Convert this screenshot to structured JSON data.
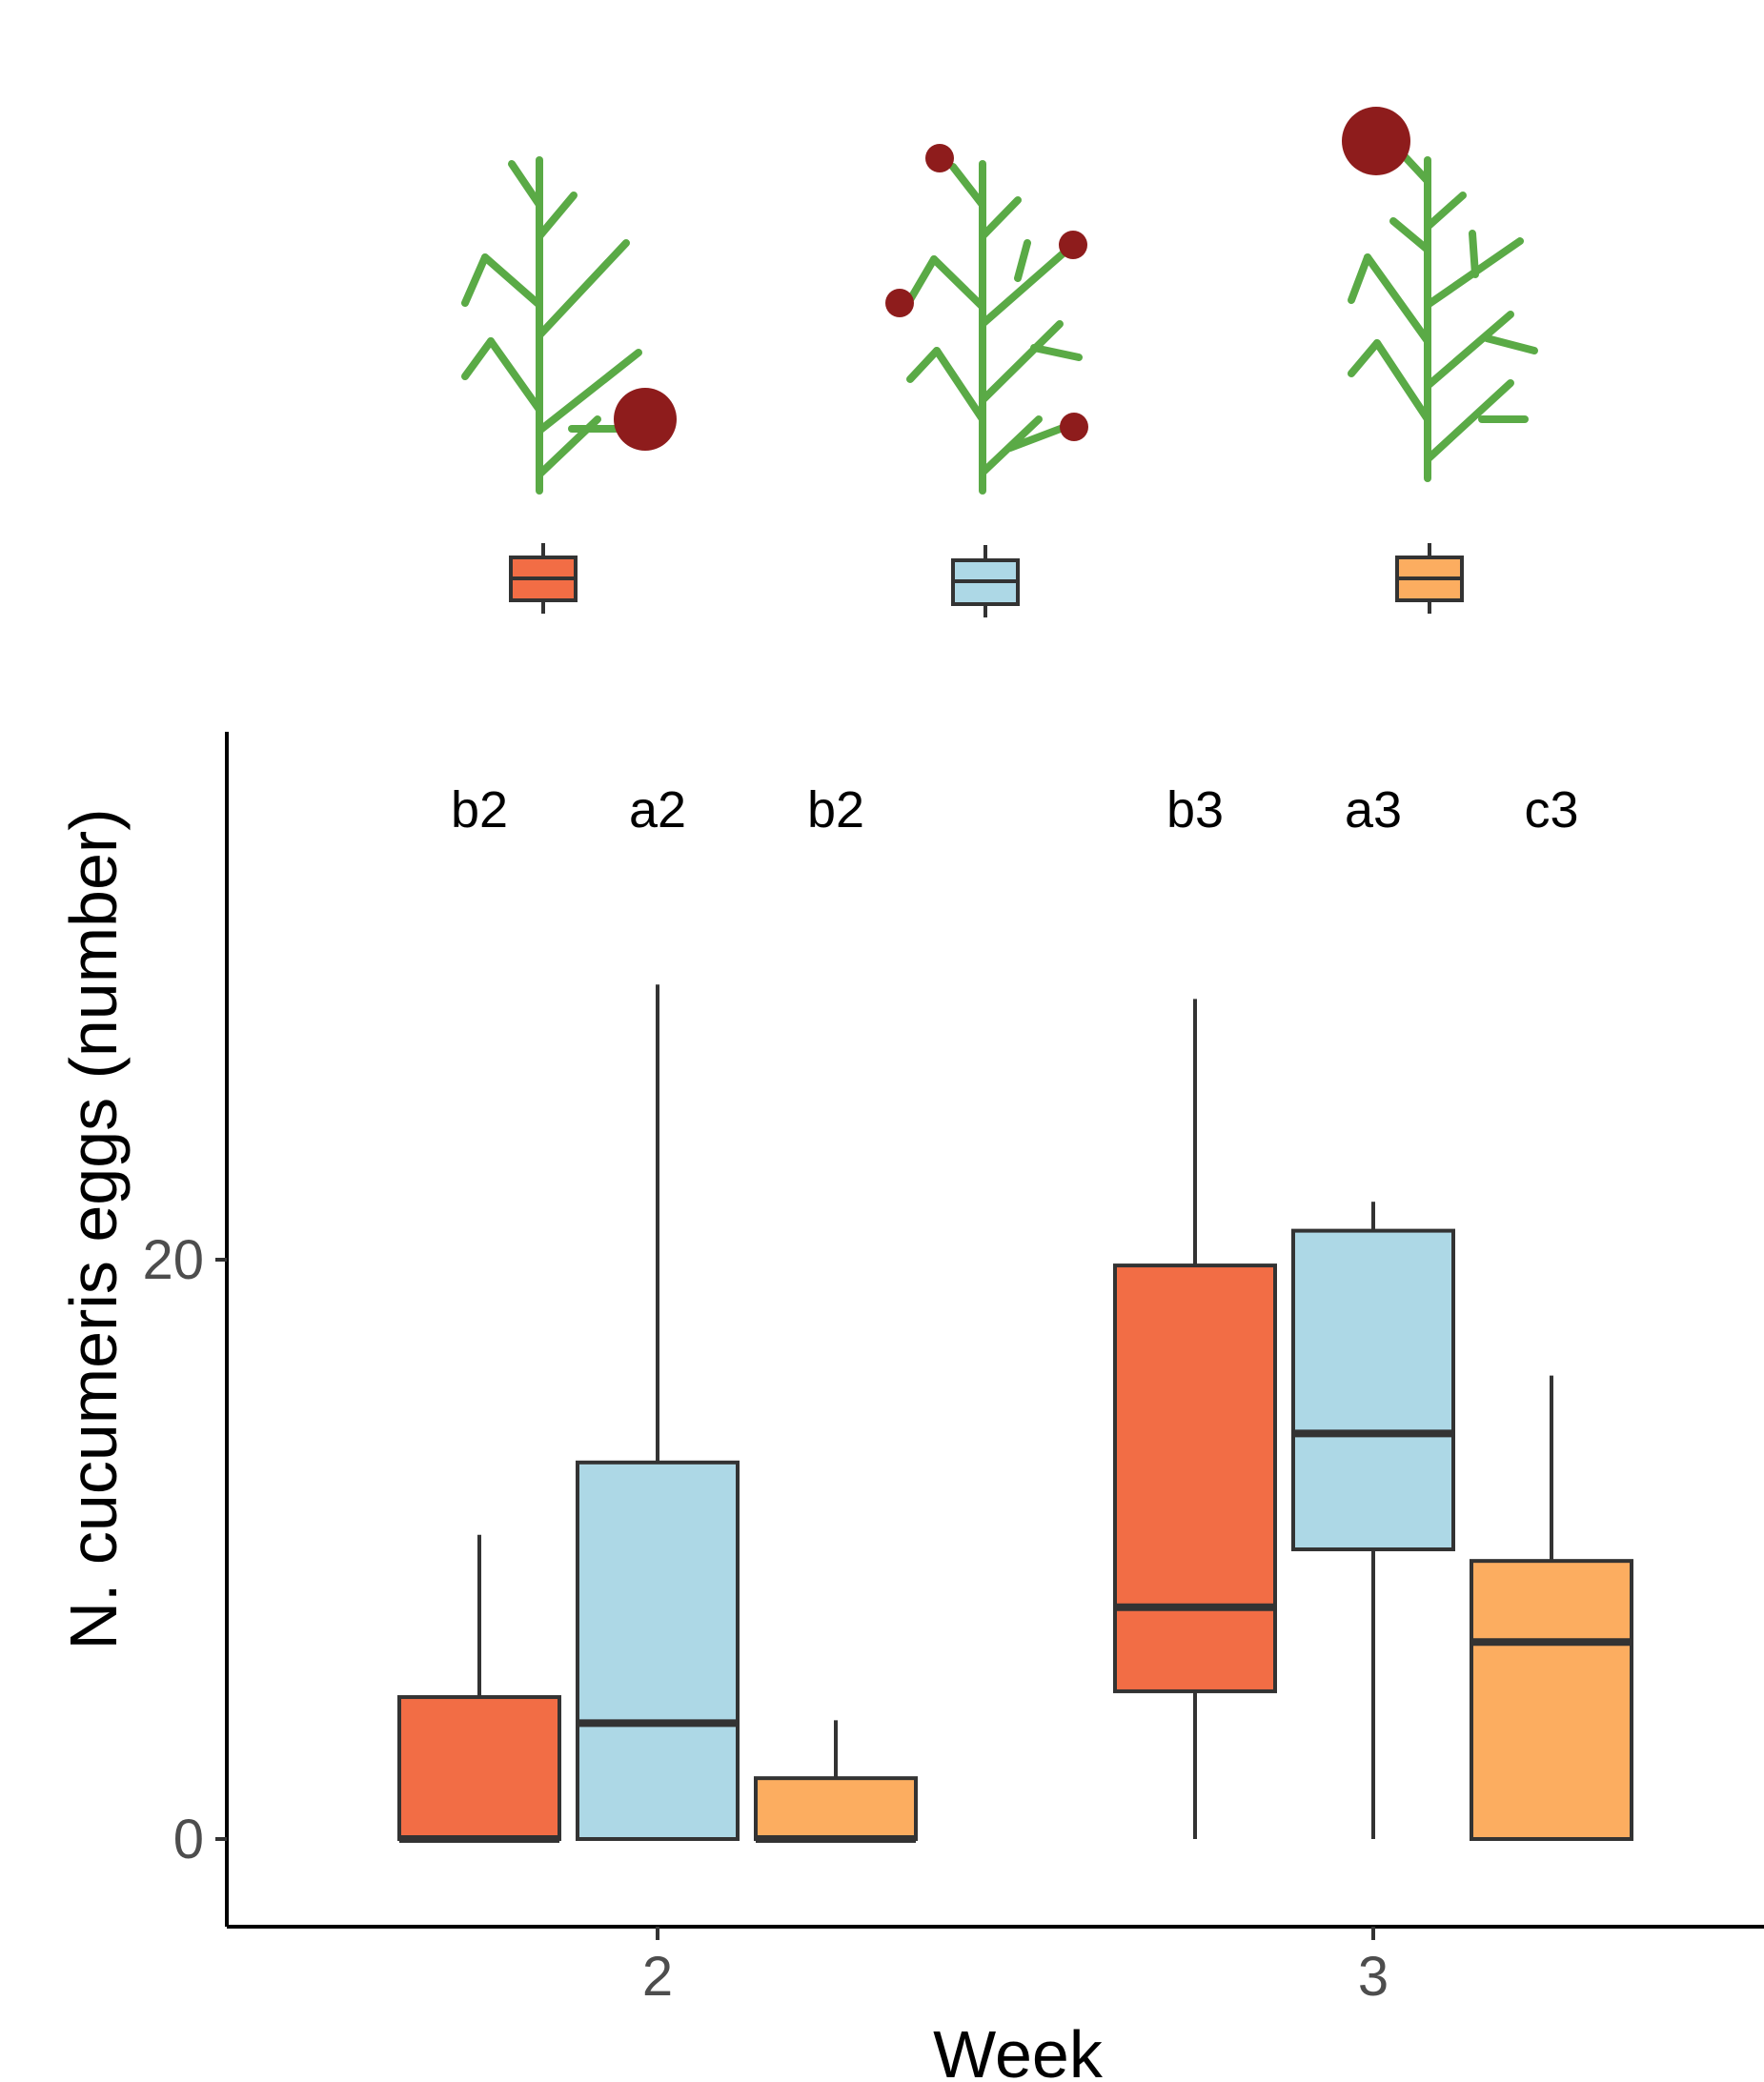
{
  "colors": {
    "treatment_1": "#f26d45",
    "treatment_2": "#add8e6",
    "treatment_3": "#fcad60",
    "outline": "#333333",
    "stem": "#5aaa46",
    "fruit": "#8e1c1c"
  },
  "icons": {
    "plant_1": "plant-one-large-fruit-bottom-icon",
    "plant_2": "plant-four-small-fruits-icon",
    "plant_3": "plant-one-large-fruit-top-icon"
  },
  "chart_data": {
    "type": "boxplot",
    "title": "",
    "xlabel": "Week",
    "ylabel": "N. cucumeris eggs (number)",
    "ylim": [
      -3,
      38
    ],
    "yticks": [
      0,
      20
    ],
    "ytick_labels": [
      "0",
      "20"
    ],
    "categories": [
      "2",
      "3"
    ],
    "legend": {
      "placement": "top",
      "entries": [
        "",
        "",
        ""
      ]
    },
    "grid": false,
    "series": [
      {
        "color_key": "treatment_1",
        "boxes": [
          {
            "week": "2",
            "min": 0,
            "q1": 0,
            "median": 0,
            "q3": 4.9,
            "max": 10.5,
            "letter": "b2"
          },
          {
            "week": "3",
            "min": 0,
            "q1": 5.1,
            "median": 8,
            "q3": 19.8,
            "max": 29,
            "letter": "b3"
          }
        ]
      },
      {
        "color_key": "treatment_2",
        "boxes": [
          {
            "week": "2",
            "min": 0,
            "q1": 0,
            "median": 4,
            "q3": 13,
            "max": 29.5,
            "letter": "a2"
          },
          {
            "week": "3",
            "min": 0,
            "q1": 10,
            "median": 14,
            "q3": 21,
            "max": 22,
            "letter": "a3"
          }
        ]
      },
      {
        "color_key": "treatment_3",
        "boxes": [
          {
            "week": "2",
            "min": 0,
            "q1": 0,
            "median": 0,
            "q3": 2.1,
            "max": 4.1,
            "letter": "b2"
          },
          {
            "week": "3",
            "min": 0,
            "q1": 0,
            "median": 6.8,
            "q3": 9.6,
            "max": 16,
            "letter": "c3"
          }
        ]
      }
    ],
    "significance_letters": [
      "b2",
      "a2",
      "b2",
      "b3",
      "a3",
      "c3"
    ]
  }
}
